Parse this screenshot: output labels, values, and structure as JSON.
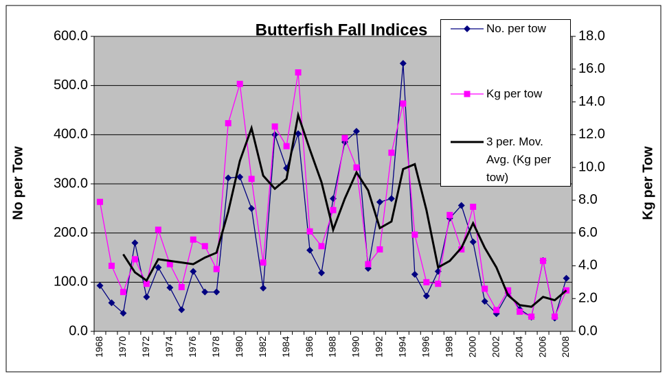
{
  "chart_data": {
    "type": "line",
    "title": "Butterfish Fall Indices",
    "y_label": "No per Tow",
    "y2_label": "Kg per Tow",
    "categories": [
      "1968",
      null,
      "1970",
      null,
      "1972",
      null,
      "1974",
      null,
      "1976",
      null,
      "1978",
      null,
      "1980",
      null,
      "1982",
      null,
      "1984",
      null,
      "1986",
      null,
      "1988",
      null,
      "1990",
      null,
      "1992",
      null,
      "1994",
      null,
      "1996",
      null,
      "1998",
      null,
      "2000",
      null,
      "2002",
      null,
      "2004",
      null,
      "2006",
      null,
      "2008"
    ],
    "series": [
      {
        "name": "No. per tow",
        "color": "#000080",
        "marker": "diamond",
        "values": [
          93,
          58,
          37,
          180,
          70,
          130,
          89,
          44,
          122,
          80,
          80,
          312,
          314,
          250,
          88,
          400,
          332,
          402,
          165,
          119,
          270,
          385,
          407,
          128,
          263,
          270,
          545,
          116,
          72,
          122,
          230,
          256,
          182,
          61,
          36,
          78,
          45,
          29,
          144,
          27,
          108
        ]
      },
      {
        "name": "Kg per tow",
        "color": "#ff00ff",
        "marker": "square",
        "axis": "y2",
        "values": [
          7.9,
          4.0,
          2.4,
          4.4,
          2.9,
          6.2,
          4.1,
          2.7,
          5.6,
          5.2,
          3.8,
          12.7,
          15.1,
          9.3,
          4.2,
          12.5,
          11.3,
          15.8,
          6.1,
          5.2,
          7.4,
          11.8,
          10.0,
          4.1,
          5.0,
          10.9,
          13.9,
          5.9,
          3.0,
          2.9,
          7.1,
          5.0,
          7.6,
          2.6,
          1.3,
          2.5,
          1.2,
          0.9,
          4.3,
          0.9,
          2.5
        ]
      },
      {
        "name": "3 per. Mov. Avg. (Kg per tow)",
        "color": "#000000",
        "marker": "none",
        "axis": "y2",
        "values": [
          null,
          null,
          4.7,
          3.6,
          3.1,
          4.4,
          4.3,
          4.2,
          4.1,
          4.5,
          4.8,
          7.3,
          10.4,
          12.4,
          9.5,
          8.7,
          9.3,
          13.2,
          11.1,
          9.1,
          6.2,
          8.1,
          9.7,
          8.6,
          6.3,
          6.7,
          9.9,
          10.2,
          7.4,
          3.9,
          4.3,
          5.1,
          6.6,
          5.1,
          3.9,
          2.2,
          1.6,
          1.5,
          2.1,
          1.9,
          2.5
        ]
      }
    ],
    "ylim": [
      0,
      600
    ],
    "yticks": [
      {
        "value": 0,
        "label": "0.0"
      },
      {
        "value": 100,
        "label": "100.0"
      },
      {
        "value": 200,
        "label": "200.0"
      },
      {
        "value": 300,
        "label": "300.0"
      },
      {
        "value": 400,
        "label": "400.0"
      },
      {
        "value": 500,
        "label": "500.0"
      },
      {
        "value": 600,
        "label": "600.0"
      }
    ],
    "y2lim": [
      0,
      18
    ],
    "y2ticks": [
      {
        "value": 0,
        "label": "0.0"
      },
      {
        "value": 2,
        "label": "2.0"
      },
      {
        "value": 4,
        "label": "4.0"
      },
      {
        "value": 6,
        "label": "6.0"
      },
      {
        "value": 8,
        "label": "8.0"
      },
      {
        "value": 10,
        "label": "10.0"
      },
      {
        "value": 12,
        "label": "12.0"
      },
      {
        "value": 14,
        "label": "14.0"
      },
      {
        "value": 16,
        "label": "16.0"
      },
      {
        "value": 18,
        "label": "18.0"
      }
    ],
    "grid": true,
    "legend": "top-right",
    "plot_background": "#c0c0c0"
  }
}
